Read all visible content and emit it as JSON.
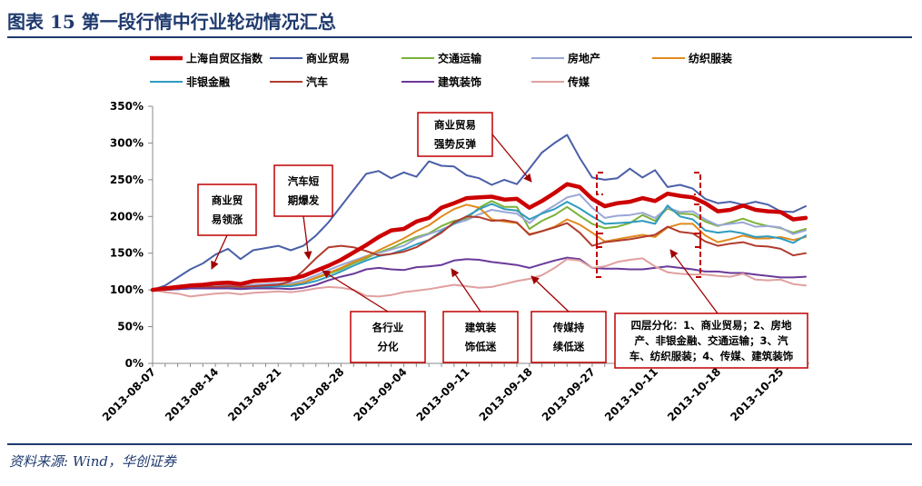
{
  "header": {
    "figure_title": "图表 15   第一段行情中行业轮动情况汇总"
  },
  "source": "资料来源: Wind，华创证券",
  "chart_data": {
    "type": "line",
    "ylim": [
      0,
      350
    ],
    "y_ticks": [
      "0%",
      "50%",
      "100%",
      "150%",
      "200%",
      "250%",
      "300%",
      "350%"
    ],
    "x_ticks": [
      "2013-08-07",
      "2013-08-14",
      "2013-08-21",
      "2013-08-28",
      "2013-09-04",
      "2013-09-11",
      "2013-09-18",
      "2013-09-27",
      "2013-10-11",
      "2013-10-18",
      "2013-10-25"
    ],
    "x_tick_index": [
      0,
      5,
      10,
      15,
      20,
      25,
      30,
      35,
      40,
      45,
      50
    ],
    "series": [
      {
        "name": "上海自贸区指数",
        "color": "#cc0000",
        "width": 4.5,
        "values": [
          100,
          102,
          104,
          106,
          107,
          109,
          110,
          108,
          112,
          113,
          114,
          115,
          119,
          126,
          133,
          141,
          151,
          161,
          172,
          181,
          183,
          193,
          198,
          212,
          218,
          225,
          226,
          227,
          223,
          224,
          212,
          221,
          232,
          244,
          240,
          224,
          214,
          218,
          220,
          225,
          221,
          231,
          228,
          226,
          218,
          207,
          209,
          215,
          209,
          207,
          206,
          196,
          198
        ]
      },
      {
        "name": "商业贸易",
        "color": "#4a5fa8",
        "width": 2,
        "values": [
          100,
          106,
          117,
          128,
          136,
          148,
          156,
          142,
          154,
          157,
          160,
          154,
          160,
          174,
          192,
          214,
          236,
          258,
          262,
          252,
          260,
          254,
          275,
          269,
          268,
          256,
          252,
          243,
          250,
          244,
          265,
          287,
          300,
          311,
          280,
          253,
          250,
          252,
          265,
          253,
          263,
          240,
          243,
          238,
          224,
          218,
          220,
          216,
          220,
          216,
          207,
          206,
          214
        ]
      },
      {
        "name": "交通运输",
        "color": "#7bb33a",
        "width": 2,
        "values": [
          100,
          100,
          102,
          103,
          104,
          104,
          105,
          103,
          104,
          106,
          107,
          107,
          110,
          116,
          122,
          128,
          136,
          143,
          151,
          157,
          165,
          172,
          177,
          187,
          194,
          197,
          212,
          221,
          213,
          213,
          183,
          194,
          202,
          213,
          201,
          190,
          184,
          186,
          191,
          202,
          194,
          211,
          204,
          203,
          193,
          187,
          192,
          197,
          191,
          187,
          184,
          178,
          183
        ]
      },
      {
        "name": "房地产",
        "color": "#9aa6d6",
        "width": 2,
        "values": [
          100,
          101,
          102,
          104,
          105,
          106,
          107,
          105,
          107,
          108,
          109,
          109,
          113,
          120,
          127,
          134,
          140,
          146,
          150,
          155,
          160,
          170,
          176,
          182,
          190,
          195,
          203,
          209,
          206,
          204,
          191,
          205,
          215,
          226,
          230,
          212,
          198,
          201,
          202,
          205,
          198,
          212,
          206,
          207,
          196,
          188,
          190,
          192,
          186,
          187,
          185,
          176,
          181
        ]
      },
      {
        "name": "纺织服装",
        "color": "#e08a1e",
        "width": 2,
        "values": [
          100,
          100,
          101,
          102,
          103,
          103,
          104,
          103,
          104,
          105,
          106,
          106,
          110,
          117,
          123,
          130,
          138,
          145,
          154,
          162,
          170,
          180,
          188,
          200,
          210,
          216,
          212,
          196,
          193,
          191,
          176,
          180,
          186,
          196,
          189,
          178,
          166,
          169,
          172,
          175,
          172,
          185,
          190,
          190,
          174,
          165,
          169,
          174,
          170,
          170,
          172,
          168,
          172
        ]
      },
      {
        "name": "非银金融",
        "color": "#2f9bbf",
        "width": 2,
        "values": [
          100,
          100,
          101,
          102,
          103,
          103,
          104,
          103,
          104,
          104,
          105,
          105,
          108,
          112,
          118,
          125,
          133,
          140,
          146,
          149,
          155,
          162,
          168,
          180,
          190,
          200,
          210,
          217,
          210,
          208,
          196,
          204,
          210,
          220,
          211,
          200,
          190,
          191,
          192,
          194,
          190,
          215,
          200,
          196,
          181,
          178,
          180,
          177,
          172,
          173,
          170,
          164,
          174
        ]
      },
      {
        "name": "汽车",
        "color": "#b03c2e",
        "width": 2,
        "values": [
          100,
          101,
          102,
          103,
          104,
          104,
          105,
          104,
          105,
          106,
          107,
          112,
          126,
          143,
          158,
          160,
          158,
          153,
          147,
          149,
          152,
          158,
          168,
          178,
          192,
          200,
          199,
          194,
          195,
          192,
          175,
          180,
          185,
          191,
          178,
          160,
          165,
          167,
          169,
          172,
          175,
          186,
          179,
          177,
          166,
          160,
          163,
          165,
          160,
          159,
          156,
          147,
          150
        ]
      },
      {
        "name": "建筑装饰",
        "color": "#6a3a9a",
        "width": 2,
        "values": [
          100,
          100,
          101,
          102,
          102,
          102,
          102,
          101,
          102,
          102,
          102,
          101,
          103,
          107,
          113,
          118,
          122,
          128,
          130,
          128,
          127,
          131,
          132,
          134,
          140,
          142,
          141,
          138,
          136,
          134,
          130,
          135,
          140,
          144,
          142,
          130,
          129,
          129,
          128,
          128,
          130,
          132,
          130,
          128,
          125,
          125,
          123,
          123,
          121,
          119,
          117,
          117,
          118
        ]
      },
      {
        "name": "传媒",
        "color": "#e0a0a0",
        "width": 2,
        "values": [
          100,
          97,
          95,
          91,
          93,
          95,
          96,
          94,
          96,
          97,
          98,
          97,
          99,
          102,
          104,
          103,
          100,
          92,
          91,
          93,
          97,
          99,
          101,
          104,
          107,
          105,
          103,
          104,
          108,
          112,
          115,
          120,
          130,
          142,
          140,
          130,
          132,
          138,
          141,
          143,
          132,
          124,
          122,
          121,
          121,
          119,
          118,
          122,
          114,
          113,
          114,
          108,
          106
        ]
      }
    ],
    "annotations": [
      {
        "text": [
          "商业贸",
          "易领涨"
        ]
      },
      {
        "text": [
          "汽车短",
          "期爆发"
        ]
      },
      {
        "text": [
          "商业贸易",
          "强势反弹"
        ]
      },
      {
        "text": [
          "各行业",
          "分化"
        ]
      },
      {
        "text": [
          "建筑装",
          "饰低迷"
        ]
      },
      {
        "text": [
          "传媒持",
          "续低迷"
        ]
      },
      {
        "text": [
          "四层分化：1、商业贸易；2、房地",
          "产、非银金融、交通运输；3、汽",
          "车、纺织服装；4、传媒、建筑装饰"
        ]
      }
    ]
  }
}
